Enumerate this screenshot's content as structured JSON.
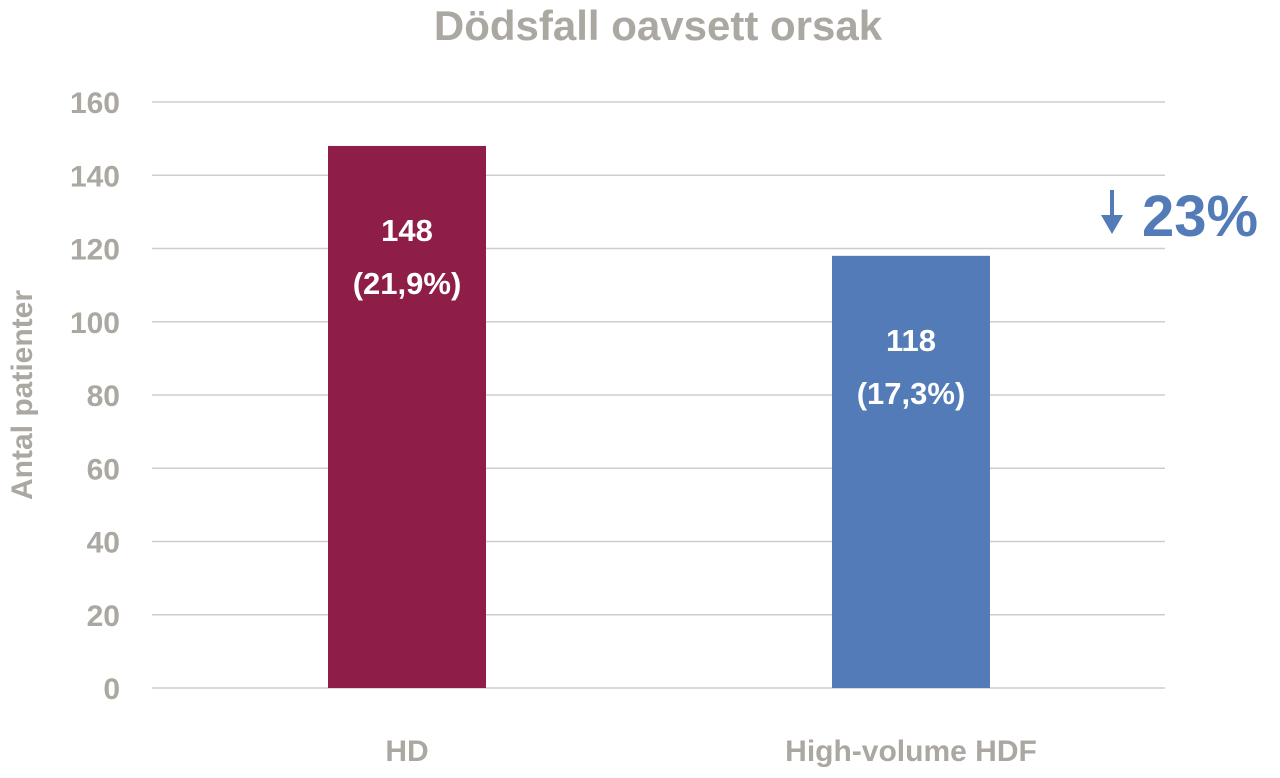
{
  "chart_data": {
    "type": "bar",
    "title": "Dödsfall oavsett orsak",
    "ylabel": "Antal patienter",
    "xlabel": "",
    "ylim": [
      0,
      160
    ],
    "yticks": [
      0,
      20,
      40,
      60,
      80,
      100,
      120,
      140,
      160
    ],
    "grid": true,
    "categories": [
      "HD",
      "High-volume HDF"
    ],
    "values": [
      148,
      118
    ],
    "colors": [
      "#8e1e47",
      "#527bb7"
    ],
    "data_labels": [
      {
        "count": "148",
        "percent": "(21,9%)"
      },
      {
        "count": "118",
        "percent": "(17,3%)"
      }
    ],
    "annotation": {
      "icon": "arrow-down-icon",
      "text": "23%",
      "color": "#527bb7"
    }
  }
}
